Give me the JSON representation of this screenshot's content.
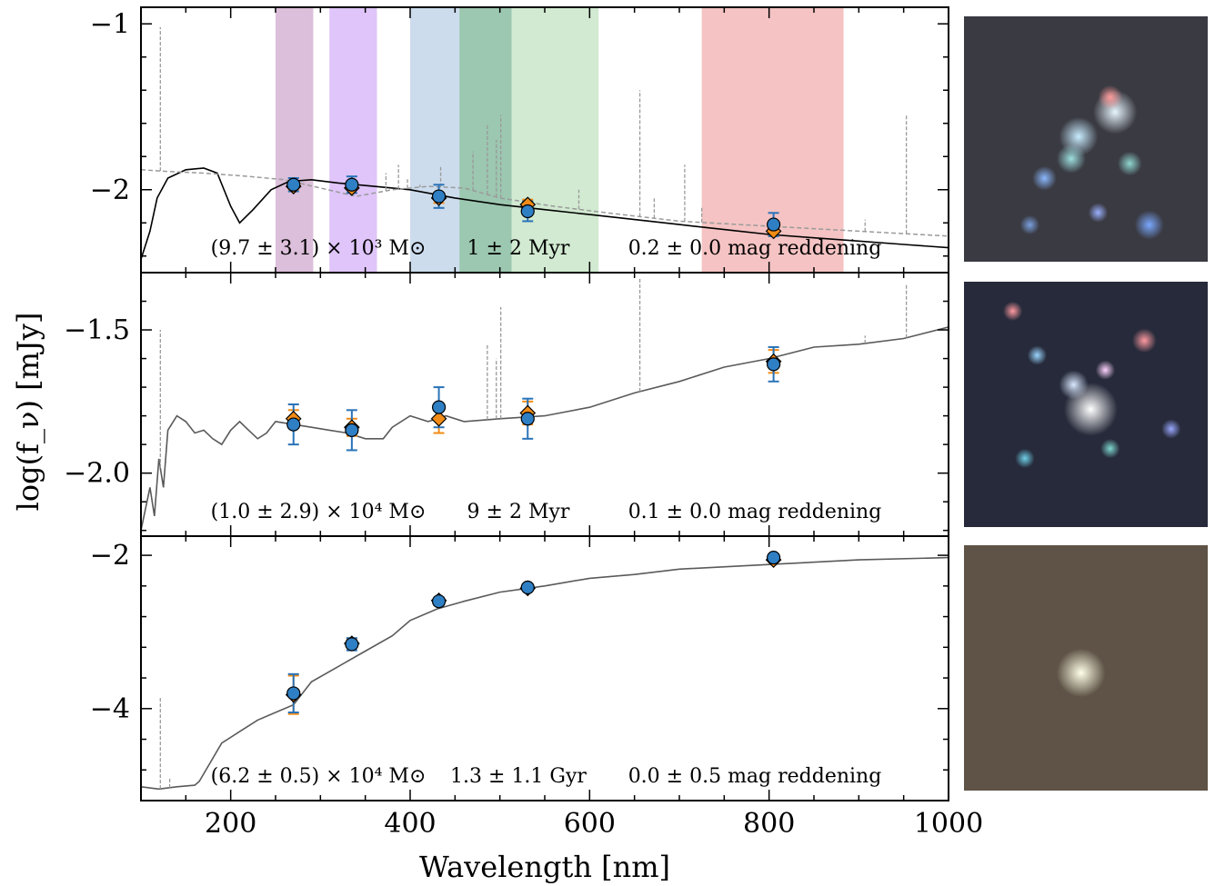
{
  "figure": {
    "xlabel": "Wavelength [nm]",
    "ylabel": "log(f_ν) [mJy]"
  },
  "chart_data": [
    {
      "type": "line",
      "panel": "top",
      "xlim": [
        100,
        1000
      ],
      "ylim": [
        -2.5,
        -0.9
      ],
      "x_ticks": [
        200,
        400,
        600,
        800,
        1000
      ],
      "y_ticks": [
        -2,
        -1
      ],
      "y_tick_labels": [
        "−2",
        "−1"
      ],
      "filter_bands": [
        {
          "range": [
            250,
            292
          ],
          "color": "#d6b4d4"
        },
        {
          "range": [
            310,
            363
          ],
          "color": "#d9bbf8"
        },
        {
          "range": [
            400,
            513
          ],
          "color": "#c3d6ea"
        },
        {
          "range": [
            455,
            610
          ],
          "color": "#c9e6c9"
        },
        {
          "range": [
            725,
            883
          ],
          "color": "#f3b9b9"
        }
      ],
      "series": [
        {
          "style": "model-solid",
          "color": "#000000",
          "x": [
            100,
            110,
            118,
            130,
            150,
            170,
            185,
            200,
            210,
            225,
            245,
            265,
            290,
            320,
            360,
            400,
            450,
            500,
            550,
            600,
            650,
            700,
            750,
            800,
            850,
            900,
            950,
            1000
          ],
          "y": [
            -2.42,
            -2.25,
            -2.05,
            -1.93,
            -1.88,
            -1.87,
            -1.9,
            -2.1,
            -2.2,
            -2.12,
            -2.0,
            -1.95,
            -1.94,
            -1.96,
            -1.98,
            -2.0,
            -2.05,
            -2.09,
            -2.12,
            -2.15,
            -2.18,
            -2.21,
            -2.24,
            -2.27,
            -2.29,
            -2.31,
            -2.33,
            -2.35
          ]
        },
        {
          "style": "model-dashed",
          "color": "#9a9a9a",
          "x": [
            100,
            130,
            170,
            220,
            260,
            300,
            340,
            380,
            420,
            460,
            500,
            560,
            620,
            700,
            800,
            900,
            1000
          ],
          "y": [
            -1.88,
            -1.89,
            -1.9,
            -1.92,
            -1.94,
            -1.99,
            -2.04,
            -2.0,
            -1.98,
            -1.99,
            -2.05,
            -2.1,
            -2.14,
            -2.19,
            -2.22,
            -2.25,
            -2.28
          ]
        },
        {
          "style": "emission-lines",
          "color": "#9a9a9a",
          "x": [
            121.6,
            373,
            387,
            397,
            411,
            434,
            470,
            486,
            496,
            501,
            588,
            656,
            672,
            706,
            725,
            907,
            953
          ],
          "y": [
            -1.02,
            -1.9,
            -1.85,
            -1.93,
            -1.97,
            -1.86,
            -1.77,
            -1.6,
            -1.7,
            -1.55,
            -2.0,
            -1.4,
            -2.05,
            -1.85,
            -2.1,
            -2.18,
            -1.55
          ]
        }
      ],
      "observed": {
        "x": [
          270,
          335,
          432,
          531,
          805
        ],
        "y": [
          -1.97,
          -1.97,
          -2.04,
          -2.13,
          -2.21
        ],
        "err": [
          0.04,
          0.05,
          0.07,
          0.06,
          0.07
        ]
      },
      "model_photometry": {
        "x": [
          270,
          335,
          432,
          531,
          805
        ],
        "y": [
          -1.98,
          -1.99,
          -2.05,
          -2.09,
          -2.25
        ],
        "err": [
          0.02,
          0.03,
          0.03,
          0.03,
          0.03
        ]
      },
      "annotations": [
        "(9.7 ± 3.1) × 10³ M⊙",
        "1 ± 2 Myr",
        "0.2 ± 0.0 mag reddening"
      ]
    },
    {
      "type": "line",
      "panel": "middle",
      "xlim": [
        100,
        1000
      ],
      "ylim": [
        -2.22,
        -1.3
      ],
      "x_ticks": [
        200,
        400,
        600,
        800,
        1000
      ],
      "y_ticks": [
        -2.0,
        -1.5
      ],
      "y_tick_labels": [
        "−2.0",
        "−1.5"
      ],
      "series": [
        {
          "style": "model-solid",
          "color": "#5a5a5a",
          "x": [
            100,
            110,
            115,
            120,
            125,
            130,
            140,
            150,
            160,
            170,
            180,
            190,
            200,
            210,
            220,
            230,
            240,
            250,
            270,
            290,
            310,
            330,
            350,
            370,
            380,
            400,
            420,
            440,
            460,
            500,
            550,
            600,
            650,
            700,
            750,
            800,
            850,
            900,
            950,
            1000
          ],
          "y": [
            -2.2,
            -2.05,
            -2.15,
            -1.95,
            -2.05,
            -1.85,
            -1.8,
            -1.82,
            -1.86,
            -1.85,
            -1.88,
            -1.9,
            -1.85,
            -1.82,
            -1.85,
            -1.88,
            -1.86,
            -1.82,
            -1.83,
            -1.84,
            -1.85,
            -1.86,
            -1.88,
            -1.88,
            -1.84,
            -1.8,
            -1.82,
            -1.8,
            -1.82,
            -1.81,
            -1.8,
            -1.77,
            -1.72,
            -1.68,
            -1.63,
            -1.6,
            -1.56,
            -1.55,
            -1.53,
            -1.49
          ]
        },
        {
          "style": "emission-lines",
          "color": "#9a9a9a",
          "x": [
            121.6,
            486,
            496,
            501,
            656,
            907,
            953
          ],
          "y": [
            -1.5,
            -1.55,
            -1.6,
            -1.42,
            -1.32,
            -1.52,
            -1.34
          ]
        }
      ],
      "observed": {
        "x": [
          270,
          335,
          432,
          531,
          805
        ],
        "y": [
          -1.83,
          -1.85,
          -1.77,
          -1.81,
          -1.62
        ],
        "err": [
          0.07,
          0.07,
          0.07,
          0.07,
          0.06
        ]
      },
      "model_photometry": {
        "x": [
          270,
          335,
          432,
          531,
          805
        ],
        "y": [
          -1.81,
          -1.84,
          -1.81,
          -1.79,
          -1.61
        ],
        "err": [
          0.03,
          0.03,
          0.05,
          0.04,
          0.04
        ]
      },
      "annotations": [
        "(1.0 ± 2.9) × 10⁴ M⊙",
        "9 ± 2 Myr",
        "0.1 ± 0.0 mag reddening"
      ]
    },
    {
      "type": "line",
      "panel": "bottom",
      "xlim": [
        100,
        1000
      ],
      "ylim": [
        -5.2,
        -1.75
      ],
      "x_ticks": [
        200,
        400,
        600,
        800,
        1000
      ],
      "x_tick_labels": [
        "200",
        "400",
        "600",
        "800",
        "1000"
      ],
      "y_ticks": [
        -4,
        -2
      ],
      "y_tick_labels": [
        "−4",
        "−2"
      ],
      "series": [
        {
          "style": "model-solid",
          "color": "#5a5a5a",
          "x": [
            100,
            120,
            140,
            160,
            165,
            175,
            190,
            210,
            230,
            250,
            270,
            290,
            320,
            350,
            380,
            400,
            430,
            460,
            500,
            550,
            600,
            650,
            700,
            800,
            900,
            1000
          ],
          "y": [
            -5.02,
            -5.05,
            -5.02,
            -5.0,
            -4.95,
            -4.75,
            -4.45,
            -4.3,
            -4.15,
            -4.05,
            -3.95,
            -3.65,
            -3.45,
            -3.25,
            -3.05,
            -2.85,
            -2.7,
            -2.6,
            -2.48,
            -2.4,
            -2.3,
            -2.25,
            -2.18,
            -2.12,
            -2.06,
            -2.03
          ]
        },
        {
          "style": "emission-lines",
          "color": "#9a9a9a",
          "x": [
            121.6,
            132
          ],
          "y": [
            -3.85,
            -4.9
          ]
        }
      ],
      "observed": {
        "x": [
          270,
          335,
          432,
          531,
          805
        ],
        "y": [
          -3.8,
          -3.16,
          -2.6,
          -2.42,
          -2.03
        ],
        "err": [
          0.25,
          0.08,
          0.05,
          0.04,
          0.03
        ]
      },
      "model_photometry": {
        "x": [
          270,
          335,
          432,
          531,
          805
        ],
        "y": [
          -3.82,
          -3.15,
          -2.59,
          -2.43,
          -2.06
        ],
        "err": [
          0.25,
          0.06,
          0.04,
          0.03,
          0.03
        ]
      },
      "annotations": [
        "(6.2 ± 0.5) × 10⁴ M⊙",
        "1.3 ± 1.1 Gyr",
        "0.0 ± 0.5 mag reddening"
      ]
    }
  ],
  "thumbnails": [
    {
      "panel": "top",
      "background": "#3a3a42",
      "sources": [
        {
          "fx": 0.62,
          "fy": 0.39,
          "r": 0.09,
          "color": "#e8f6ff"
        },
        {
          "fx": 0.6,
          "fy": 0.33,
          "r": 0.05,
          "color": "#ff9a9a"
        },
        {
          "fx": 0.47,
          "fy": 0.49,
          "r": 0.08,
          "color": "#c8ecff"
        },
        {
          "fx": 0.44,
          "fy": 0.58,
          "r": 0.06,
          "color": "#9ee0e0"
        },
        {
          "fx": 0.68,
          "fy": 0.6,
          "r": 0.05,
          "color": "#8fd6d0"
        },
        {
          "fx": 0.33,
          "fy": 0.66,
          "r": 0.05,
          "color": "#8bb8ff"
        },
        {
          "fx": 0.55,
          "fy": 0.8,
          "r": 0.04,
          "color": "#9ab0ff"
        },
        {
          "fx": 0.76,
          "fy": 0.85,
          "r": 0.06,
          "color": "#7aa8ff"
        },
        {
          "fx": 0.27,
          "fy": 0.85,
          "r": 0.04,
          "color": "#7aa0e0"
        }
      ]
    },
    {
      "panel": "middle",
      "background": "#262a3a",
      "sources": [
        {
          "fx": 0.52,
          "fy": 0.52,
          "r": 0.11,
          "color": "#ffffff"
        },
        {
          "fx": 0.45,
          "fy": 0.42,
          "r": 0.06,
          "color": "#d9e8ff"
        },
        {
          "fx": 0.58,
          "fy": 0.36,
          "r": 0.04,
          "color": "#ffd3ff"
        },
        {
          "fx": 0.3,
          "fy": 0.3,
          "r": 0.04,
          "color": "#9bd6ff"
        },
        {
          "fx": 0.74,
          "fy": 0.24,
          "r": 0.05,
          "color": "#ff9aa0"
        },
        {
          "fx": 0.2,
          "fy": 0.12,
          "r": 0.04,
          "color": "#ff9aa0"
        },
        {
          "fx": 0.25,
          "fy": 0.72,
          "r": 0.04,
          "color": "#6fd0e8"
        },
        {
          "fx": 0.6,
          "fy": 0.68,
          "r": 0.04,
          "color": "#7fd8d0"
        },
        {
          "fx": 0.85,
          "fy": 0.6,
          "r": 0.04,
          "color": "#9aa8ff"
        }
      ]
    },
    {
      "panel": "bottom",
      "background": "#5e5346",
      "sources": [
        {
          "fx": 0.48,
          "fy": 0.52,
          "r": 0.1,
          "color": "#ffffe8"
        }
      ]
    }
  ]
}
